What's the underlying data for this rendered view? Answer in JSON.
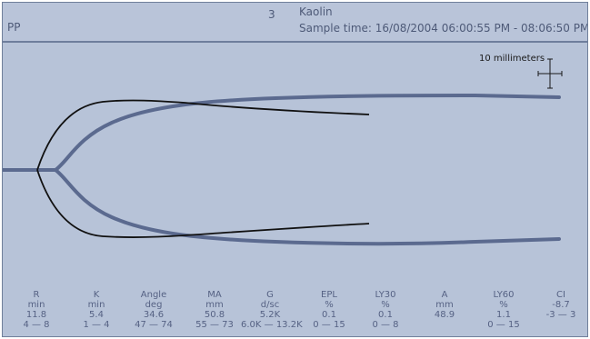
{
  "header": {
    "left_label": "PP",
    "channel_number": "3",
    "test_name": "Kaolin",
    "sample_time": "Sample time: 16/08/2004 06:00:55 PM - 08:06:50 PM"
  },
  "plot": {
    "scale_label": "10 millimeters",
    "colors": {
      "background": "#b7c3d8",
      "sample_trace": "#5b6a8f",
      "reference_trace": "#111111"
    }
  },
  "parameters": [
    {
      "name": "R",
      "unit": "min",
      "value": "11.8",
      "range": "4 — 8"
    },
    {
      "name": "K",
      "unit": "min",
      "value": "5.4",
      "range": "1 — 4"
    },
    {
      "name": "Angle",
      "unit": "deg",
      "value": "34.6",
      "range": "47 — 74"
    },
    {
      "name": "MA",
      "unit": "mm",
      "value": "50.8",
      "range": "55 — 73"
    },
    {
      "name": "G",
      "unit": "d/sc",
      "value": "5.2K",
      "range": "6.0K — 13.2K"
    },
    {
      "name": "EPL",
      "unit": "%",
      "value": "0.1",
      "range": "0 — 15"
    },
    {
      "name": "LY30",
      "unit": "%",
      "value": "0.1",
      "range": "0 — 8"
    },
    {
      "name": "A",
      "unit": "mm",
      "value": "48.9",
      "range": ""
    },
    {
      "name": "LY60",
      "unit": "%",
      "value": "1.1",
      "range": "0 — 15"
    },
    {
      "name": "CI",
      "unit": "",
      "value": "-8.7",
      "range": "-3 — 3"
    }
  ]
}
